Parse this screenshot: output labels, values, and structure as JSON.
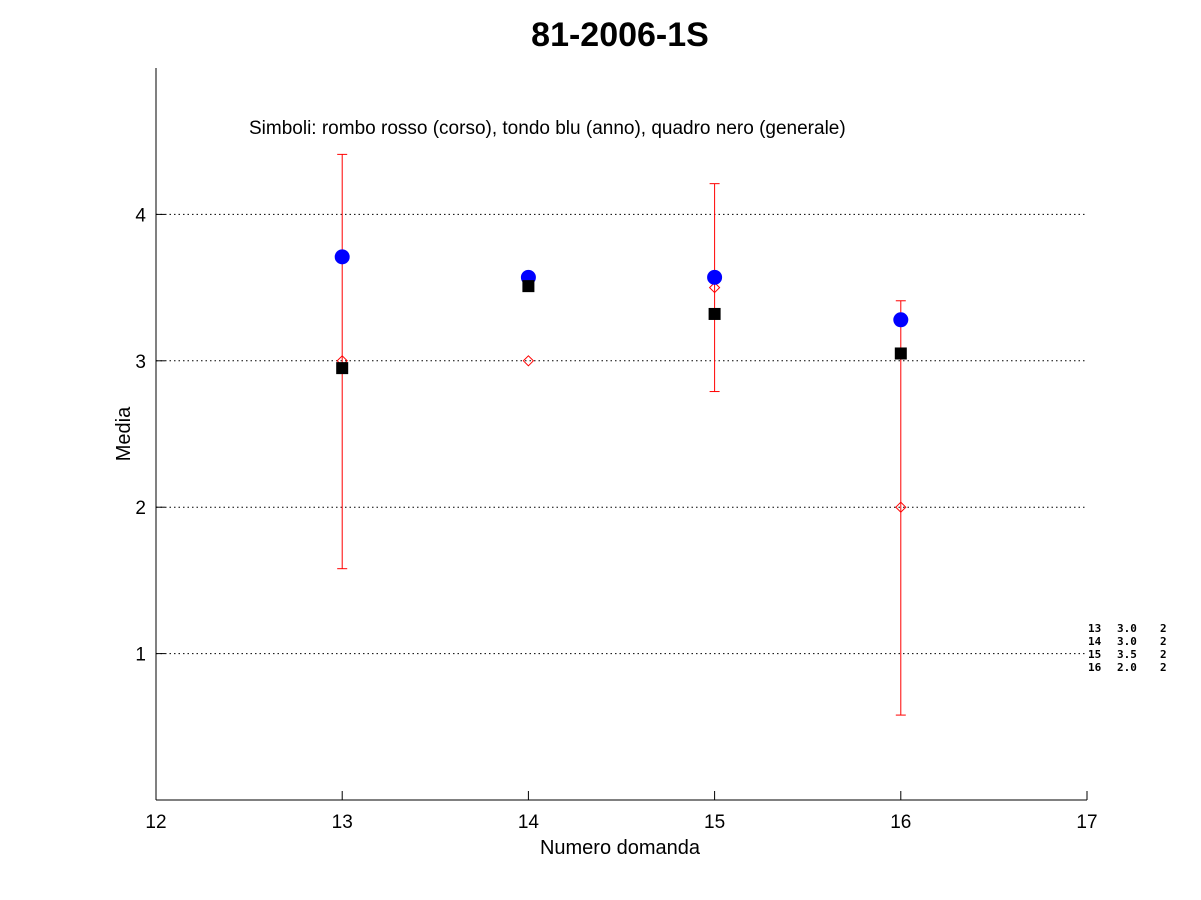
{
  "chart_data": {
    "type": "scatter",
    "title": "81-2006-1S",
    "annotation": "Simboli: rombo rosso (corso), tondo blu (anno), quadro nero (generale)",
    "xlabel": "Numero domanda",
    "ylabel": "Media",
    "xlim": [
      12,
      17
    ],
    "ylim": [
      0,
      5
    ],
    "xticks": [
      12,
      13,
      14,
      15,
      16,
      17
    ],
    "yticks": [
      1,
      2,
      3,
      4
    ],
    "grid": "horizontal dotted",
    "series": [
      {
        "name": "corso",
        "marker": "diamond",
        "color": "#ff0000",
        "x": [
          13,
          14,
          15,
          16
        ],
        "y": [
          3.0,
          3.0,
          3.5,
          2.0
        ],
        "error_low": [
          1.58,
          3.0,
          2.79,
          0.58
        ],
        "error_high": [
          4.41,
          3.0,
          4.21,
          3.41
        ]
      },
      {
        "name": "anno",
        "marker": "circle",
        "color": "#0000ff",
        "x": [
          13,
          14,
          15,
          16
        ],
        "y": [
          3.71,
          3.57,
          3.57,
          3.28
        ]
      },
      {
        "name": "generale",
        "marker": "square",
        "color": "#000000",
        "x": [
          13,
          14,
          15,
          16
        ],
        "y": [
          2.95,
          3.51,
          3.32,
          3.05
        ]
      }
    ],
    "side_table": [
      [
        "13",
        "3.0",
        "2"
      ],
      [
        "14",
        "3.0",
        "2"
      ],
      [
        "15",
        "3.5",
        "2"
      ],
      [
        "16",
        "2.0",
        "2"
      ]
    ]
  }
}
